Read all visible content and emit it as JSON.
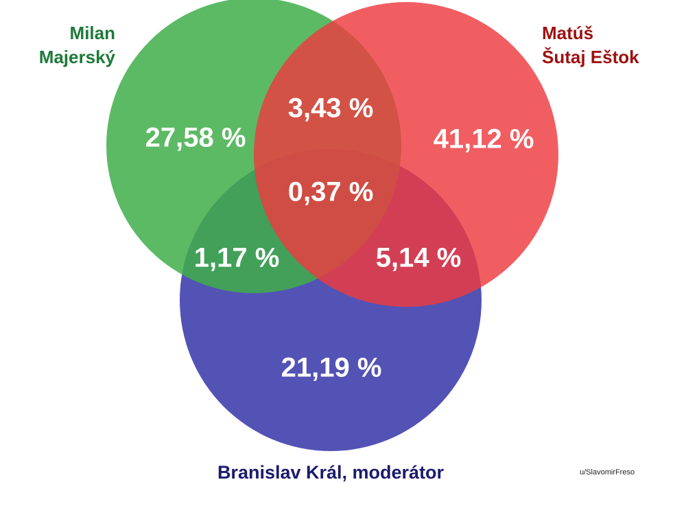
{
  "chart_data": {
    "type": "venn",
    "sets": [
      {
        "name": [
          "Milan",
          "Majerský"
        ],
        "color": "#3fae49",
        "label_color": "#1e7a3a"
      },
      {
        "name": [
          "Matúš",
          "Šutaj Eštok"
        ],
        "color": "#ee3b3f",
        "label_color": "#9e1010"
      },
      {
        "name": [
          "Branislav Král, moderátor"
        ],
        "color": "#3535a8",
        "label_color": "#1b1b6e"
      }
    ],
    "areas": [
      {
        "sets": [
          0
        ],
        "value": 27.58,
        "value_label": "27,58 %"
      },
      {
        "sets": [
          1
        ],
        "value": 41.12,
        "value_label": "41,12 %"
      },
      {
        "sets": [
          2
        ],
        "value": 21.19,
        "value_label": "21,19 %"
      },
      {
        "sets": [
          0,
          1
        ],
        "value": 3.43,
        "value_label": "3,43 %"
      },
      {
        "sets": [
          0,
          2
        ],
        "value": 1.17,
        "value_label": "1,17 %"
      },
      {
        "sets": [
          1,
          2
        ],
        "value": 5.14,
        "value_label": "5,14 %"
      },
      {
        "sets": [
          0,
          1,
          2
        ],
        "value": 0.37,
        "value_label": "0,37 %"
      }
    ],
    "credit": "u/SlavomirFreso"
  }
}
